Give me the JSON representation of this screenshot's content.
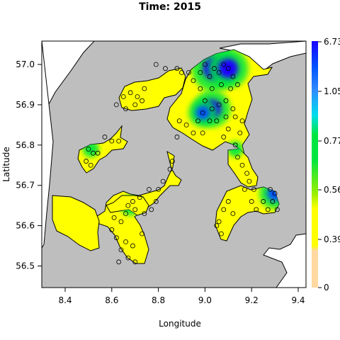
{
  "chart_data": {
    "type": "heatmap",
    "title": "Time: 2015",
    "xlabel": "Longitude",
    "ylabel": "Latitude",
    "xlim": [
      8.3,
      9.5
    ],
    "ylim": [
      56.45,
      57.06
    ],
    "x_ticks": [
      8.4,
      8.6,
      8.8,
      9.0,
      9.2,
      9.4
    ],
    "x_tick_labels": [
      "8.4",
      "8.6",
      "8.8",
      "9.0",
      "9.2",
      "9.4"
    ],
    "y_ticks": [
      56.5,
      56.6,
      56.7,
      56.8,
      56.9,
      57.0
    ],
    "y_tick_labels": [
      "56.5",
      "56.6",
      "56.7",
      "56.8",
      "56.9",
      "57.0"
    ],
    "colorbar": {
      "ticks": [
        0,
        0.39,
        0.56,
        0.77,
        1.05,
        6.73
      ],
      "tick_labels": [
        "0",
        "0.39",
        "0.56",
        "0.77",
        "1.05",
        "6.73"
      ],
      "colors": [
        "#ffd9a0",
        "#ffff00",
        "#9bef00",
        "#00e640",
        "#00ddee",
        "#0060ff",
        "#1a00ff"
      ]
    },
    "colors": {
      "land": "#bebebe",
      "outline": "#000000",
      "low": "#ffd9a0",
      "mid_low": "#ffff00",
      "mid": "#9bef00",
      "mid_high": "#00e640",
      "high": "#0060ff",
      "max": "#1a00ff"
    },
    "hotspots": [
      {
        "lon": 9.04,
        "lat": 56.99,
        "value": 6.0
      },
      {
        "lon": 9.1,
        "lat": 56.99,
        "value": 5.0
      },
      {
        "lon": 9.03,
        "lat": 56.89,
        "value": 4.5
      },
      {
        "lon": 8.99,
        "lat": 56.88,
        "value": 3.0
      },
      {
        "lon": 9.3,
        "lat": 56.68,
        "value": 3.5
      },
      {
        "lon": 8.68,
        "lat": 56.65,
        "value": 1.5
      },
      {
        "lon": 8.51,
        "lat": 56.79,
        "value": 0.9
      },
      {
        "lon": 9.13,
        "lat": 56.79,
        "value": 0.8
      }
    ],
    "stations": [
      {
        "lon": 8.98,
        "lat": 56.98
      },
      {
        "lon": 9.0,
        "lat": 57.0
      },
      {
        "lon": 9.02,
        "lat": 56.97
      },
      {
        "lon": 9.04,
        "lat": 56.99
      },
      {
        "lon": 9.06,
        "lat": 56.98
      },
      {
        "lon": 9.08,
        "lat": 57.0
      },
      {
        "lon": 9.1,
        "lat": 56.99
      },
      {
        "lon": 9.12,
        "lat": 56.97
      },
      {
        "lon": 9.07,
        "lat": 56.95
      },
      {
        "lon": 9.03,
        "lat": 56.94
      },
      {
        "lon": 8.98,
        "lat": 56.94
      },
      {
        "lon": 9.11,
        "lat": 56.94
      },
      {
        "lon": 9.14,
        "lat": 56.95
      },
      {
        "lon": 8.95,
        "lat": 56.96
      },
      {
        "lon": 8.93,
        "lat": 56.98
      },
      {
        "lon": 9.0,
        "lat": 56.91
      },
      {
        "lon": 9.03,
        "lat": 56.89
      },
      {
        "lon": 9.06,
        "lat": 56.9
      },
      {
        "lon": 9.09,
        "lat": 56.91
      },
      {
        "lon": 9.12,
        "lat": 56.89
      },
      {
        "lon": 8.99,
        "lat": 56.88
      },
      {
        "lon": 8.97,
        "lat": 56.86
      },
      {
        "lon": 9.02,
        "lat": 56.86
      },
      {
        "lon": 9.05,
        "lat": 56.86
      },
      {
        "lon": 9.09,
        "lat": 56.87
      },
      {
        "lon": 9.13,
        "lat": 56.87
      },
      {
        "lon": 9.16,
        "lat": 56.86
      },
      {
        "lon": 9.1,
        "lat": 56.84
      },
      {
        "lon": 9.15,
        "lat": 56.83
      },
      {
        "lon": 9.08,
        "lat": 56.82
      },
      {
        "lon": 9.13,
        "lat": 56.8
      },
      {
        "lon": 9.14,
        "lat": 56.77
      },
      {
        "lon": 9.16,
        "lat": 56.75
      },
      {
        "lon": 9.18,
        "lat": 56.73
      },
      {
        "lon": 9.19,
        "lat": 56.71
      },
      {
        "lon": 9.17,
        "lat": 56.69
      },
      {
        "lon": 9.21,
        "lat": 56.69
      },
      {
        "lon": 9.2,
        "lat": 56.66
      },
      {
        "lon": 9.22,
        "lat": 56.64
      },
      {
        "lon": 9.25,
        "lat": 56.66
      },
      {
        "lon": 9.27,
        "lat": 56.64
      },
      {
        "lon": 9.29,
        "lat": 56.66
      },
      {
        "lon": 9.3,
        "lat": 56.68
      },
      {
        "lon": 9.28,
        "lat": 56.69
      },
      {
        "lon": 9.31,
        "lat": 56.64
      },
      {
        "lon": 9.1,
        "lat": 56.66
      },
      {
        "lon": 9.08,
        "lat": 56.64
      },
      {
        "lon": 9.12,
        "lat": 56.63
      },
      {
        "lon": 9.06,
        "lat": 56.61
      },
      {
        "lon": 9.07,
        "lat": 56.58
      },
      {
        "lon": 9.05,
        "lat": 56.6
      },
      {
        "lon": 8.9,
        "lat": 56.98
      },
      {
        "lon": 8.88,
        "lat": 56.99
      },
      {
        "lon": 8.83,
        "lat": 56.99
      },
      {
        "lon": 8.79,
        "lat": 57.0
      },
      {
        "lon": 8.74,
        "lat": 56.94
      },
      {
        "lon": 8.71,
        "lat": 56.92
      },
      {
        "lon": 8.68,
        "lat": 56.93
      },
      {
        "lon": 8.65,
        "lat": 56.92
      },
      {
        "lon": 8.62,
        "lat": 56.9
      },
      {
        "lon": 8.66,
        "lat": 56.89
      },
      {
        "lon": 8.7,
        "lat": 56.9
      },
      {
        "lon": 8.73,
        "lat": 56.91
      },
      {
        "lon": 8.89,
        "lat": 56.86
      },
      {
        "lon": 8.92,
        "lat": 56.85
      },
      {
        "lon": 8.88,
        "lat": 56.82
      },
      {
        "lon": 8.95,
        "lat": 56.83
      },
      {
        "lon": 8.99,
        "lat": 56.83
      },
      {
        "lon": 8.6,
        "lat": 56.81
      },
      {
        "lon": 8.63,
        "lat": 56.81
      },
      {
        "lon": 8.57,
        "lat": 56.82
      },
      {
        "lon": 8.5,
        "lat": 56.79
      },
      {
        "lon": 8.52,
        "lat": 56.78
      },
      {
        "lon": 8.49,
        "lat": 56.76
      },
      {
        "lon": 8.51,
        "lat": 56.75
      },
      {
        "lon": 8.54,
        "lat": 56.78
      },
      {
        "lon": 8.86,
        "lat": 56.76
      },
      {
        "lon": 8.85,
        "lat": 56.74
      },
      {
        "lon": 8.82,
        "lat": 56.71
      },
      {
        "lon": 8.8,
        "lat": 56.69
      },
      {
        "lon": 8.76,
        "lat": 56.69
      },
      {
        "lon": 8.72,
        "lat": 56.67
      },
      {
        "lon": 8.69,
        "lat": 56.66
      },
      {
        "lon": 8.67,
        "lat": 56.65
      },
      {
        "lon": 8.7,
        "lat": 56.64
      },
      {
        "lon": 8.66,
        "lat": 56.63
      },
      {
        "lon": 8.61,
        "lat": 56.62
      },
      {
        "lon": 8.64,
        "lat": 56.61
      },
      {
        "lon": 8.6,
        "lat": 56.59
      },
      {
        "lon": 8.62,
        "lat": 56.57
      },
      {
        "lon": 8.66,
        "lat": 56.56
      },
      {
        "lon": 8.69,
        "lat": 56.55
      },
      {
        "lon": 8.64,
        "lat": 56.54
      },
      {
        "lon": 8.67,
        "lat": 56.52
      },
      {
        "lon": 8.7,
        "lat": 56.51
      },
      {
        "lon": 8.63,
        "lat": 56.51
      },
      {
        "lon": 8.77,
        "lat": 56.64
      },
      {
        "lon": 8.79,
        "lat": 56.66
      },
      {
        "lon": 8.74,
        "lat": 56.63
      },
      {
        "lon": 8.73,
        "lat": 56.58
      }
    ]
  }
}
